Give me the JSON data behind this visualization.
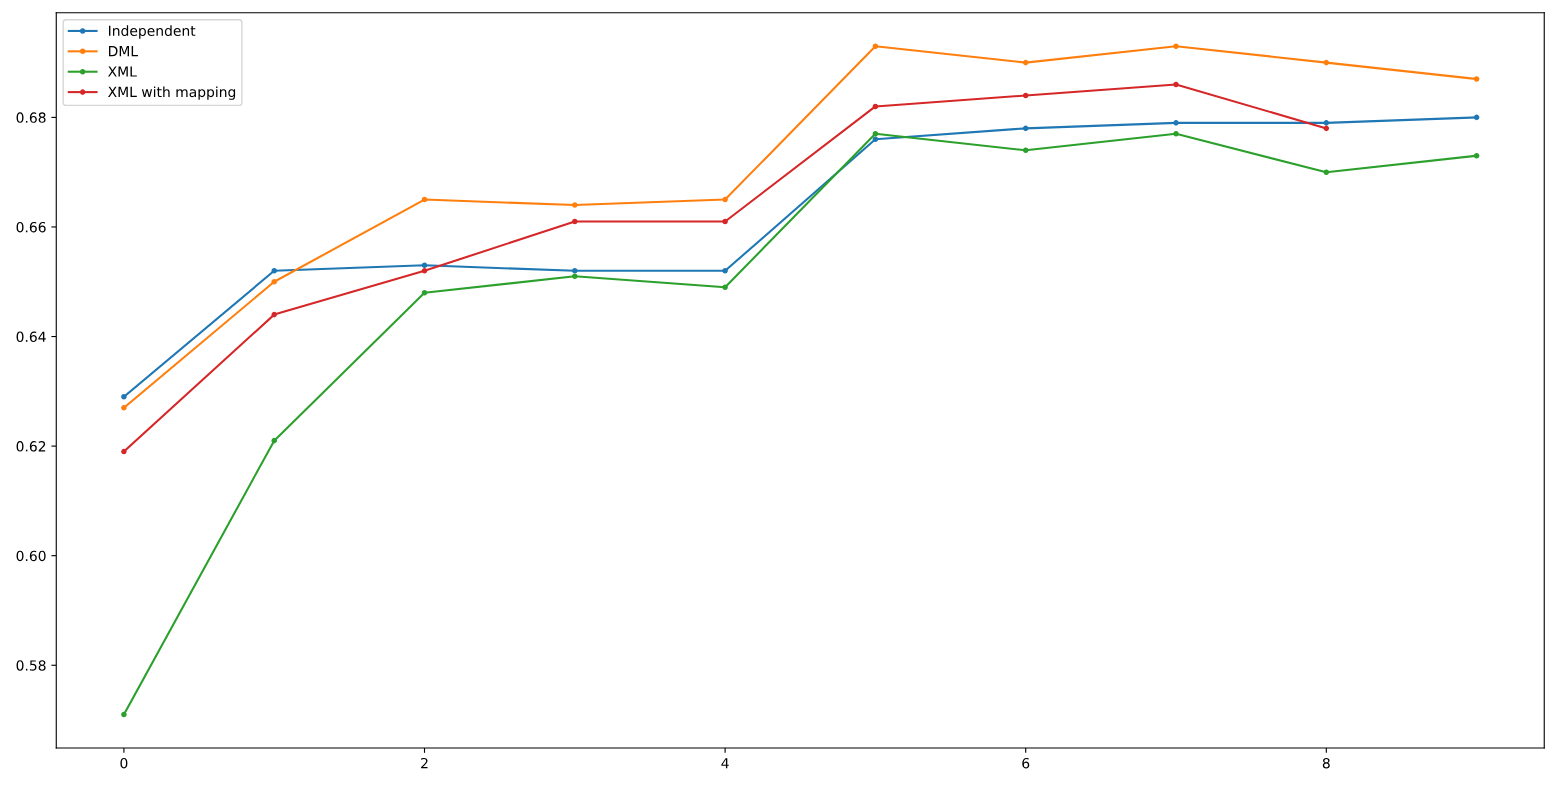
{
  "chart_data": {
    "type": "line",
    "x": [
      0,
      1,
      2,
      3,
      4,
      5,
      6,
      7,
      8,
      9
    ],
    "series": [
      {
        "name": "Independent",
        "color": "#1f77b4",
        "values": [
          0.629,
          0.652,
          0.653,
          0.652,
          0.652,
          0.676,
          0.678,
          0.679,
          0.679,
          0.68
        ]
      },
      {
        "name": "DML",
        "color": "#ff7f0e",
        "values": [
          0.627,
          0.65,
          0.665,
          0.664,
          0.665,
          0.693,
          0.69,
          0.693,
          0.69,
          0.687
        ]
      },
      {
        "name": "XML",
        "color": "#2ca02c",
        "values": [
          0.571,
          0.621,
          0.648,
          0.651,
          0.649,
          0.677,
          0.674,
          0.677,
          0.67,
          0.673
        ]
      },
      {
        "name": "XML with mapping",
        "color": "#d62728",
        "values": [
          0.619,
          0.644,
          0.652,
          0.661,
          0.661,
          0.682,
          0.684,
          0.686,
          0.678,
          null
        ]
      }
    ],
    "xlim": [
      -0.45,
      9.45
    ],
    "xticks": [
      0,
      2,
      4,
      6,
      8
    ],
    "ylim": [
      0.5649,
      0.6991
    ],
    "yticks": [
      {
        "value": 0.58,
        "label": "0.58"
      },
      {
        "value": 0.6,
        "label": "0.60"
      },
      {
        "value": 0.62,
        "label": "0.62"
      },
      {
        "value": 0.64,
        "label": "0.64"
      },
      {
        "value": 0.66,
        "label": "0.66"
      },
      {
        "value": 0.68,
        "label": "0.68"
      }
    ],
    "marker": "circle",
    "line_style": "solid",
    "grid": false,
    "legend": "top left"
  }
}
